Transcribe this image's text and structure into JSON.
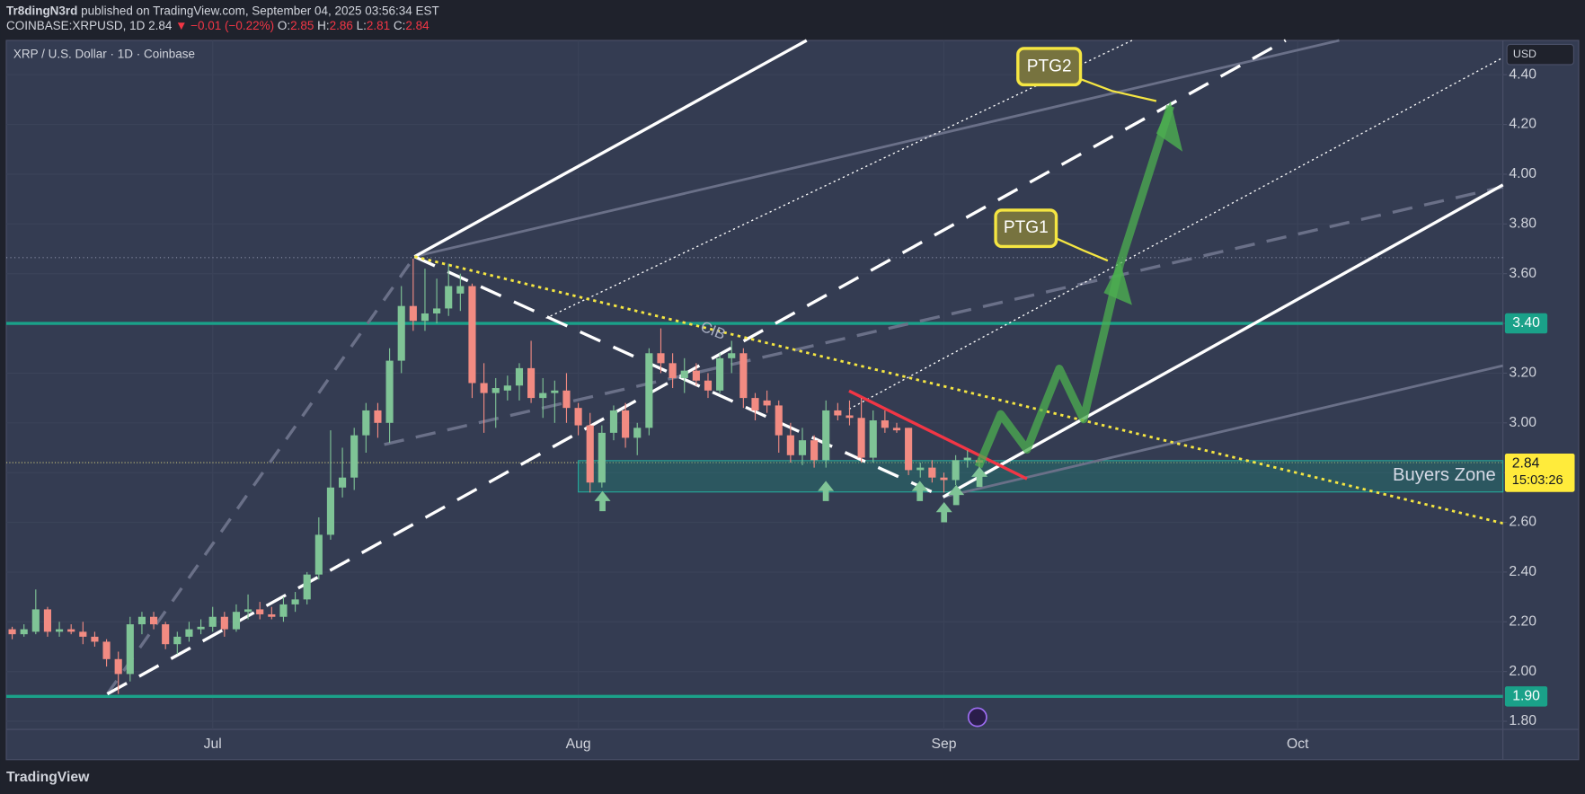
{
  "header": {
    "author": "Tr8dingN3rd",
    "published": "published on TradingView.com, September 04, 2025 03:56:34 EST",
    "symbol": "COINBASE:XRPUSD, 1D",
    "price": "2.84",
    "change": "▼ −0.01 (−0.22%)",
    "ohlc": [
      {
        "key": "O:",
        "value": "2.85"
      },
      {
        "key": "H:",
        "value": "2.86"
      },
      {
        "key": "L:",
        "value": "2.81"
      },
      {
        "key": "C:",
        "value": "2.84"
      }
    ]
  },
  "footer": {
    "brand": "TradingView"
  },
  "chart_data": {
    "type": "candlestick",
    "title": "XRP / U.S. Dollar · 1D · Coinbase",
    "currency": "USD",
    "up_color": "#7fc496",
    "down_color": "#f28b82",
    "x": [
      0,
      1,
      2,
      3,
      4,
      5,
      6,
      7,
      8,
      9,
      10,
      11,
      12,
      13,
      14,
      15,
      16,
      17,
      18,
      19,
      20,
      21,
      22,
      23,
      24,
      25,
      26,
      27,
      28,
      29,
      30,
      31,
      32,
      33,
      34,
      35,
      36,
      37,
      38,
      39,
      40,
      41,
      42,
      43,
      44,
      45,
      46,
      47,
      48,
      49,
      50,
      51,
      52,
      53,
      54,
      55,
      56,
      57,
      58,
      59,
      60,
      61,
      62,
      63,
      64,
      65,
      66,
      67,
      68,
      69,
      70,
      71,
      72,
      73,
      74,
      75,
      76,
      77,
      78,
      79,
      80,
      81,
      82
    ],
    "open": [
      2.17,
      2.15,
      2.16,
      2.25,
      2.16,
      2.17,
      2.16,
      2.14,
      2.12,
      2.05,
      1.99,
      2.19,
      2.22,
      2.19,
      2.11,
      2.14,
      2.17,
      2.18,
      2.22,
      2.17,
      2.24,
      2.25,
      2.23,
      2.22,
      2.27,
      2.29,
      2.39,
      2.55,
      2.74,
      2.78,
      2.95,
      3.05,
      3.0,
      3.25,
      3.47,
      3.41,
      3.44,
      3.46,
      3.52,
      3.55,
      3.16,
      3.12,
      3.13,
      3.15,
      3.22,
      3.1,
      3.12,
      3.13,
      3.06,
      2.99,
      2.76,
      2.96,
      3.05,
      2.94,
      2.98,
      3.28,
      3.24,
      3.18,
      3.21,
      3.17,
      3.13,
      3.26,
      3.28,
      3.1,
      3.09,
      3.07,
      2.95,
      2.87,
      2.93,
      2.85,
      3.05,
      3.03,
      3.02,
      2.86,
      3.01,
      2.98,
      2.98,
      2.81,
      2.82,
      2.78,
      2.77,
      2.85,
      2.85
    ],
    "high": [
      2.18,
      2.19,
      2.33,
      2.26,
      2.2,
      2.19,
      2.2,
      2.16,
      2.13,
      2.08,
      2.22,
      2.24,
      2.24,
      2.2,
      2.16,
      2.2,
      2.21,
      2.26,
      2.24,
      2.27,
      2.31,
      2.28,
      2.26,
      2.3,
      2.32,
      2.4,
      2.62,
      2.97,
      2.9,
      2.98,
      3.08,
      3.08,
      3.3,
      3.55,
      3.66,
      3.62,
      3.58,
      3.64,
      3.6,
      3.56,
      3.24,
      3.18,
      3.19,
      3.24,
      3.33,
      3.18,
      3.17,
      3.2,
      3.08,
      3.04,
      2.99,
      3.07,
      3.08,
      3.0,
      3.3,
      3.38,
      3.28,
      3.26,
      3.24,
      3.2,
      3.28,
      3.33,
      3.3,
      3.12,
      3.13,
      3.09,
      3.0,
      2.98,
      2.95,
      3.09,
      3.08,
      3.09,
      3.1,
      3.05,
      3.05,
      3.0,
      2.98,
      2.84,
      2.85,
      2.8,
      2.87,
      2.89,
      2.86
    ],
    "low": [
      2.13,
      2.14,
      2.15,
      2.14,
      2.14,
      2.15,
      2.11,
      2.1,
      2.02,
      1.91,
      1.96,
      2.15,
      2.17,
      2.09,
      2.07,
      2.12,
      2.15,
      2.16,
      2.14,
      2.16,
      2.21,
      2.21,
      2.21,
      2.2,
      2.24,
      2.27,
      2.37,
      2.53,
      2.7,
      2.73,
      2.88,
      2.94,
      2.92,
      3.2,
      3.37,
      3.37,
      3.4,
      3.43,
      3.45,
      3.1,
      2.96,
      2.98,
      3.09,
      3.09,
      3.08,
      3.02,
      3.0,
      3.0,
      2.95,
      2.72,
      2.74,
      2.93,
      2.9,
      2.87,
      2.95,
      3.2,
      3.14,
      3.12,
      3.15,
      3.1,
      3.12,
      3.2,
      3.06,
      3.01,
      3.04,
      2.88,
      2.84,
      2.83,
      2.82,
      2.82,
      3.01,
      2.99,
      2.84,
      2.84,
      2.96,
      2.96,
      2.79,
      2.78,
      2.76,
      2.72,
      2.75,
      2.82,
      2.81
    ],
    "close": [
      2.15,
      2.17,
      2.25,
      2.16,
      2.17,
      2.16,
      2.14,
      2.12,
      2.05,
      1.99,
      2.19,
      2.22,
      2.19,
      2.11,
      2.14,
      2.17,
      2.18,
      2.22,
      2.17,
      2.24,
      2.25,
      2.23,
      2.22,
      2.27,
      2.29,
      2.39,
      2.55,
      2.74,
      2.78,
      2.95,
      3.05,
      3.0,
      3.25,
      3.47,
      3.41,
      3.44,
      3.46,
      3.55,
      3.55,
      3.16,
      3.12,
      3.14,
      3.15,
      3.22,
      3.1,
      3.12,
      3.13,
      3.06,
      2.99,
      2.76,
      2.96,
      3.05,
      2.94,
      2.98,
      3.28,
      3.24,
      3.18,
      3.21,
      3.17,
      3.13,
      3.26,
      3.28,
      3.1,
      3.05,
      3.07,
      2.95,
      2.87,
      2.93,
      2.85,
      3.05,
      3.03,
      3.02,
      2.86,
      3.01,
      2.98,
      2.97,
      2.81,
      2.82,
      2.78,
      2.77,
      2.85,
      2.86,
      2.84
    ],
    "xlim": [
      -0.5,
      126.4
    ],
    "xticks": [
      {
        "value": 17,
        "label": "Jul"
      },
      {
        "value": 48,
        "label": "Aug"
      },
      {
        "value": 79,
        "label": "Sep"
      },
      {
        "value": 109,
        "label": "Oct"
      }
    ],
    "ylim": [
      1.7675,
      4.538
    ],
    "yticks": [
      {
        "value": 1.8,
        "label": "1.80"
      },
      {
        "value": 2,
        "label": "2.00"
      },
      {
        "value": 2.2,
        "label": "2.20"
      },
      {
        "value": 2.4,
        "label": "2.40"
      },
      {
        "value": 2.6,
        "label": "2.60"
      },
      {
        "value": 2.8,
        "label": "2.80"
      },
      {
        "value": 3,
        "label": "3.00"
      },
      {
        "value": 3.2,
        "label": "3.20"
      },
      {
        "value": 3.4,
        "label": "3.40"
      },
      {
        "value": 3.6,
        "label": "3.60"
      },
      {
        "value": 3.8,
        "label": "3.80"
      },
      {
        "value": 4,
        "label": "4.00"
      },
      {
        "value": 4.2,
        "label": "4.20"
      },
      {
        "value": 4.4,
        "label": "4.40"
      }
    ],
    "levels": [
      {
        "value": 3.4,
        "label": "3.40",
        "color": "#1aa189"
      },
      {
        "value": 1.9,
        "label": "1.90",
        "color": "#1aa189"
      }
    ],
    "last_price": {
      "value": 2.84,
      "label": "2.84",
      "countdown": "15:03:26",
      "color": "#ffeb3b"
    },
    "annotations": {
      "ptg1": "PTG1",
      "ptg2": "PTG2",
      "cib": "CIB",
      "zone": "Buyers Zone"
    }
  }
}
